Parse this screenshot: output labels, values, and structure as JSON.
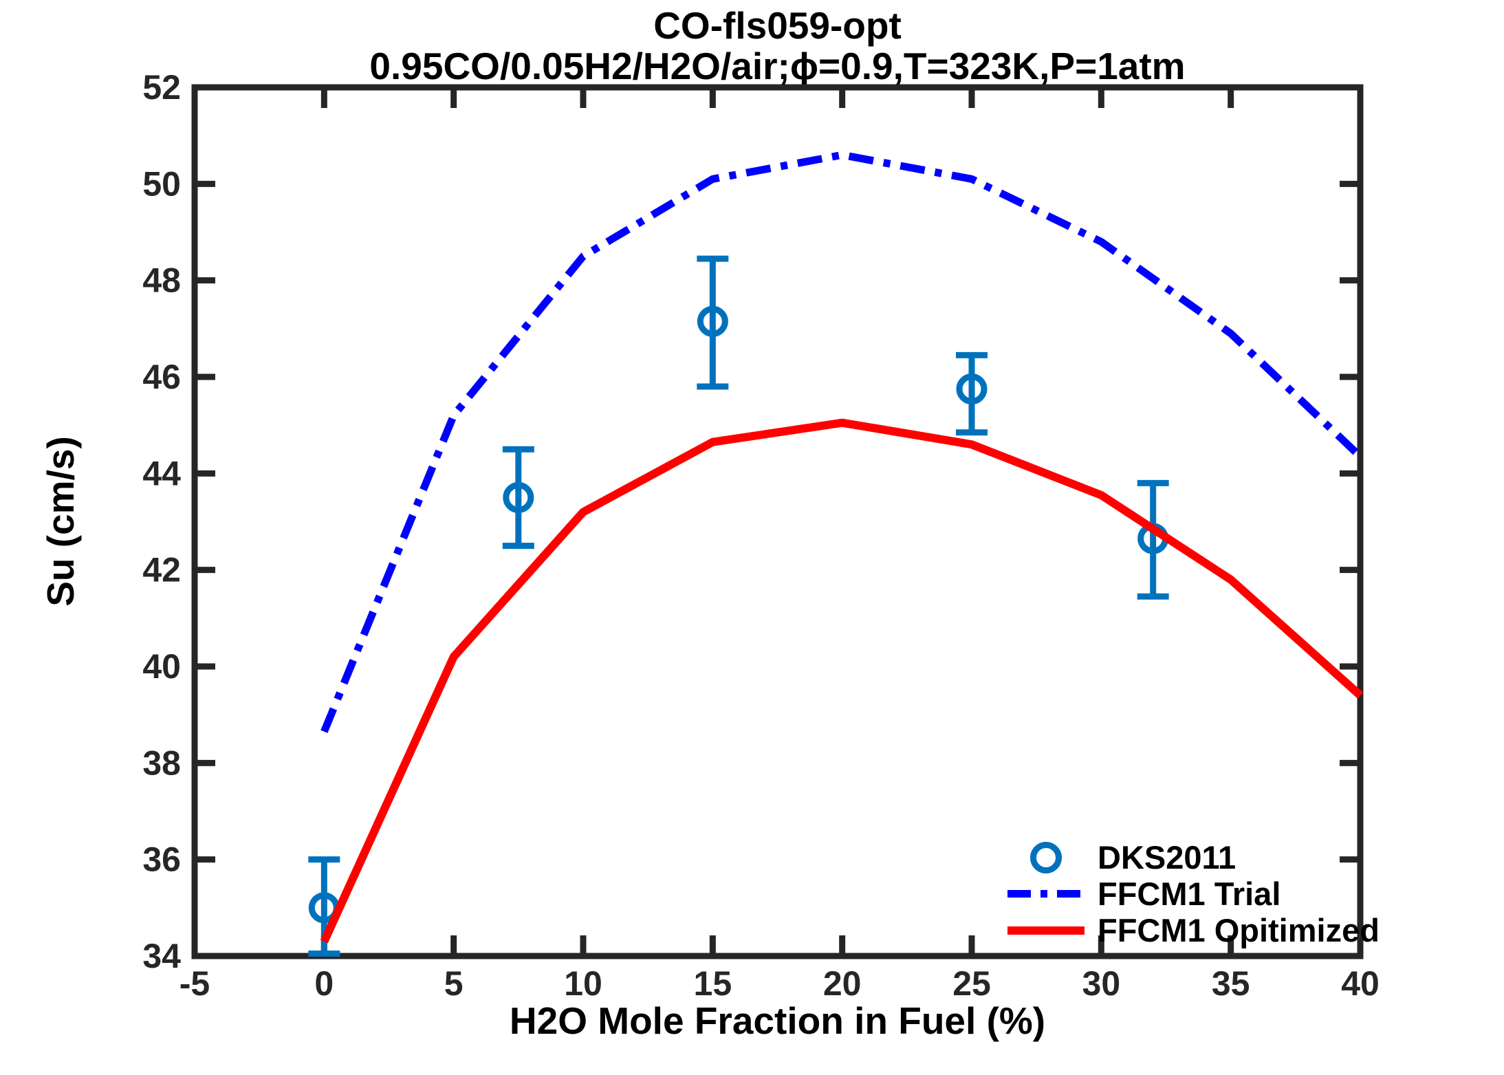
{
  "axes": {
    "frame_color": "#262626",
    "background": "#ffffff"
  },
  "chart_data": {
    "type": "line",
    "title": "CO-fls059-opt",
    "subtitle": "0.95CO/0.05H2/H2O/air;ϕ=0.9,T=323K,P=1atm",
    "xlabel": "H2O Mole Fraction in Fuel (%)",
    "ylabel": "Su (cm/s)",
    "xlim": [
      -5,
      40
    ],
    "ylim": [
      34,
      52
    ],
    "xticks": [
      -5,
      0,
      5,
      10,
      15,
      20,
      25,
      30,
      35,
      40
    ],
    "yticks": [
      34,
      36,
      38,
      40,
      42,
      44,
      46,
      48,
      50,
      52
    ],
    "grid": false,
    "legend_position": "inside lower right, no box",
    "series": [
      {
        "name": "DKS2011",
        "type": "scatter_errorbar",
        "marker": "open-circle",
        "color": "#0072BD",
        "points": [
          {
            "x": 0,
            "y": 35.0,
            "y_lo": 34.05,
            "y_hi": 36.0
          },
          {
            "x": 7.5,
            "y": 43.5,
            "y_lo": 42.5,
            "y_hi": 44.5
          },
          {
            "x": 15,
            "y": 47.15,
            "y_lo": 45.8,
            "y_hi": 48.45
          },
          {
            "x": 25,
            "y": 45.75,
            "y_lo": 44.85,
            "y_hi": 46.45
          },
          {
            "x": 32,
            "y": 42.65,
            "y_lo": 41.45,
            "y_hi": 43.8
          }
        ]
      },
      {
        "name": "FFCM1 Trial",
        "type": "line",
        "style": "dash-dot",
        "color": "#0000FF",
        "width": 11,
        "x": [
          0,
          5,
          10,
          15,
          20,
          25,
          30,
          35,
          40
        ],
        "y": [
          38.65,
          45.2,
          48.5,
          50.1,
          50.6,
          50.1,
          48.8,
          46.9,
          44.35
        ]
      },
      {
        "name": "FFCM1 Opitimized",
        "type": "line",
        "style": "solid",
        "color": "#FF0000",
        "width": 12,
        "x": [
          0,
          5,
          10,
          15,
          20,
          25,
          30,
          35,
          40
        ],
        "y": [
          34.3,
          40.2,
          43.2,
          44.65,
          45.05,
          44.6,
          43.55,
          41.8,
          39.4
        ]
      }
    ]
  }
}
